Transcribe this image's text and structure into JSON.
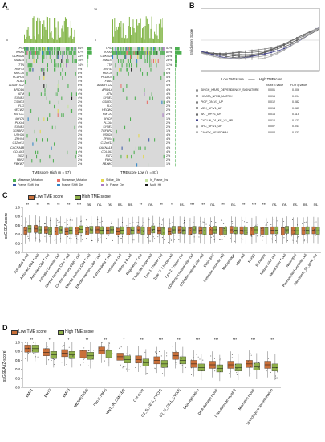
{
  "panels": {
    "A": {
      "letter": "A",
      "left_counts_top": "87",
      "right_counts_top": "71",
      "axis_zero": "0",
      "axis_top_left": "29",
      "axis_top_right": "38",
      "left_caption": "TMEscore High (n = 57)",
      "right_caption": "TMEscore Low (n = 81)",
      "genes_left": [
        "TP53",
        "KRAS",
        "CDKN2A",
        "SMAD4",
        "TTN",
        "RNF43",
        "MUC16",
        "PCDH15",
        "FLAG",
        "ADAMTS12",
        "ARID1A",
        "ATM",
        "SYNE1",
        "CSMD3",
        "FLG",
        "HECW2",
        "KMT2C",
        "MYCN",
        "PLXA4",
        "SYNE1",
        "TGFBR2",
        "USH2A",
        "ZFHX4",
        "C12orf11",
        "CACNA1B",
        "COL4A3",
        "FAT2",
        "FBN2",
        "FBXW7"
      ],
      "pct_left": [
        "64%",
        "67%",
        "23%",
        "15%",
        "14%",
        "9%",
        "8%",
        "8%",
        "4%",
        "6%",
        "4%",
        "4%",
        "4%",
        "2%",
        "4%",
        "4%",
        "4%",
        "2%",
        "4%",
        "4%",
        "4%",
        "2%",
        "4%",
        "2%",
        "2%",
        "4%",
        "2%",
        "2%",
        "2%"
      ],
      "genes_right": [
        "TP53",
        "KRAS",
        "CDKN2A",
        "SMAD4",
        "TTN",
        "RNF43",
        "MUC16",
        "PCDH15",
        "FLAG",
        "ADAMTS12",
        "ARID1A",
        "ATM",
        "SYNE1",
        "CSMD3",
        "FLG",
        "HECW2",
        "KMT2C",
        "MYCN",
        "PLXA4",
        "SYNE1",
        "TGFBR2",
        "USH2A",
        "ZFHX4",
        "C12orf11",
        "CACNA1B",
        "COL4A3",
        "FAT2",
        "FBN2",
        "FBXW7"
      ],
      "pct_right": [
        "57%",
        "84%",
        "28%",
        "26%",
        "17%",
        "7%",
        "6%",
        "5%",
        "2%",
        "4%",
        "4%",
        "4%",
        "4%",
        "4%",
        "2%",
        "2%",
        "2%",
        "1%",
        "2%",
        "2%",
        "1%",
        "4%",
        "4%",
        "2%",
        "4%",
        "4%",
        "2%",
        "2%",
        "1%"
      ],
      "legend": [
        {
          "label": "Missense_Mutation",
          "color": "#4caf50"
        },
        {
          "label": "Nonsense_Mutation",
          "color": "#e86f68"
        },
        {
          "label": "Splice_Site",
          "color": "#e5d74b"
        },
        {
          "label": "In_Frame_Ins",
          "color": "#c4e39d"
        },
        {
          "label": "Frame_Shift_Ins",
          "color": "#3d5aa8"
        },
        {
          "label": "Frame_Shift_Del",
          "color": "#2f86c6"
        },
        {
          "label": "In_Frame_Del",
          "color": "#a877c4"
        },
        {
          "label": "Multi_Hit",
          "color": "#1a1a1a"
        }
      ]
    },
    "B": {
      "letter": "B",
      "ylabel": "Enrichment Score",
      "xlabel": "Low TMEscore ←——→ High TMEscore",
      "col_nom": "NOM p-value",
      "col_fdr": "FDR q-value",
      "rows": [
        {
          "name": "SINGH_KRAS_DEPENDENCY_SIGNATURE",
          "p": "0.001",
          "q": "0.006",
          "color": "#8a8a8a"
        },
        {
          "name": "HINATA_NFKB_MATRIX",
          "p": "0.016",
          "q": "0.094",
          "color": "#6b6b6b"
        },
        {
          "name": "PIGF_DN.V1_UP",
          "p": "0.012",
          "q": "0.082",
          "color": "#7a7a7a"
        },
        {
          "name": "MEK_UP.V1_UP",
          "p": "0.014",
          "q": "0.083",
          "color": "#555555"
        },
        {
          "name": "AKT_UP.V1_UP",
          "p": "0.016",
          "q": "0.115",
          "color": "#666666"
        },
        {
          "name": "CYCLIN_D1_KE_V1_UP",
          "p": "0.010",
          "q": "0.123",
          "color": "#3e3e8a"
        },
        {
          "name": "SRC_UP.V1_UP",
          "p": "0.007",
          "q": "0.041",
          "color": "#9c9c9c"
        },
        {
          "name": "CAHOY_NEURONAL",
          "p": "0.002",
          "q": "0.033",
          "color": "#b0b0b0"
        }
      ]
    },
    "C": {
      "letter": "C",
      "legend_low": "Low TME score",
      "legend_high": "High TME score",
      "ylabel": "ssGSEA score",
      "yticks": [
        "1.0",
        "0.8",
        "0.6",
        "0.4",
        "0.2",
        "0.0"
      ],
      "categories": [
        "Activated B cell",
        "Activated CD4 T cell",
        "Activated CD8 T cell",
        "Activated dendritic cell",
        "Central memory CD4 T cell",
        "Central memory CD8 T cell",
        "Effector memory CD4 T cell",
        "Effector memory CD8 T cell",
        "Gamma delta T cell",
        "Immature B cell",
        "Memory B cell",
        "Regulatory T cell",
        "T follicular helper cell",
        "Type 1 T helper cell",
        "Type 17 T helper cell",
        "Type 2 T helper cell",
        "CD56bright natural killer cell",
        "CD56dim natural killer cell",
        "Eosinophil",
        "Immature dendritic cell",
        "Macrophage",
        "Mast cell",
        "MDSC",
        "Monocyte",
        "Natural killer cell",
        "Natural killer T cell",
        "Neutrophil",
        "Plasmacytoid dendritic cell",
        "Fibroblasts_53_gene_set"
      ],
      "sig": [
        "**",
        "**",
        "**",
        "**",
        "**",
        "***",
        "ns.",
        "ns.",
        "ns.",
        "ns.",
        "ns.",
        "**",
        "ns.",
        "**",
        "*",
        "ns.",
        "***",
        "***",
        "ns.",
        "**",
        "ns.",
        "**",
        "***",
        "***",
        "ns.",
        "ns.",
        "ns.",
        "ns.",
        "ns."
      ]
    },
    "D": {
      "letter": "D",
      "legend_low": "Low TME score",
      "legend_high": "High TME score",
      "ylabel": "ssGSEA (Z-score)",
      "yticks": [
        "1.0",
        "0.8",
        "0.6",
        "0.4",
        "0.2",
        "0.0"
      ],
      "categories": [
        "EMT1",
        "EMT2",
        "EMT3",
        "METASTASIS",
        "Pan-F-TBRS",
        "WNT_IN_CANCER",
        "Cell cycle",
        "G1_S_CELL_CYCLE",
        "G2_M_CELL_CYCLE",
        "DNA replication",
        "DNA damage repair",
        "DNA damage repair 2",
        "Mismatch repair",
        "Homologous recombination"
      ],
      "sig": [
        "**",
        "**",
        "*",
        "**",
        "**",
        "*",
        "***",
        "***",
        "***",
        "***",
        "***",
        "***",
        "***",
        "***"
      ]
    }
  },
  "chart_data": [
    {
      "type": "box",
      "panel": "C",
      "ylabel": "ssGSEA score",
      "ylim": [
        0,
        1.0
      ],
      "categories": [
        "Activated B cell",
        "Activated CD4 T cell",
        "Activated CD8 T cell",
        "Activated dendritic cell",
        "Central memory CD4 T cell",
        "Central memory CD8 T cell",
        "Effector memory CD4 T cell",
        "Effector memory CD8 T cell",
        "Gamma delta T cell",
        "Immature B cell",
        "Memory B cell",
        "Regulatory T cell",
        "T follicular helper cell",
        "Type 1 T helper cell",
        "Type 17 T helper cell",
        "Type 2 T helper cell",
        "CD56bright natural killer cell",
        "CD56dim natural killer cell",
        "Eosinophil",
        "Immature dendritic cell",
        "Macrophage",
        "Mast cell",
        "MDSC",
        "Monocyte",
        "Natural killer cell",
        "Natural killer T cell",
        "Neutrophil",
        "Plasmacytoid dendritic cell",
        "Fibroblasts_53_gene_set"
      ],
      "series": [
        {
          "name": "Low TME score",
          "color": "#c9703a",
          "medians": [
            0.48,
            0.52,
            0.5,
            0.47,
            0.46,
            0.48,
            0.47,
            0.5,
            0.49,
            0.46,
            0.47,
            0.5,
            0.48,
            0.49,
            0.46,
            0.5,
            0.47,
            0.49,
            0.48,
            0.47,
            0.5,
            0.49,
            0.47,
            0.48,
            0.49,
            0.47,
            0.48,
            0.48,
            0.49
          ]
        },
        {
          "name": "High TME score",
          "color": "#8fb04a",
          "medians": [
            0.52,
            0.5,
            0.48,
            0.5,
            0.49,
            0.51,
            0.5,
            0.49,
            0.5,
            0.49,
            0.49,
            0.48,
            0.51,
            0.47,
            0.5,
            0.49,
            0.5,
            0.47,
            0.5,
            0.48,
            0.49,
            0.48,
            0.5,
            0.47,
            0.49,
            0.5,
            0.48,
            0.49,
            0.48
          ]
        }
      ]
    },
    {
      "type": "box",
      "panel": "D",
      "ylabel": "ssGSEA (Z-score)",
      "ylim": [
        0,
        1.0
      ],
      "categories": [
        "EMT1",
        "EMT2",
        "EMT3",
        "METASTASIS",
        "Pan-F-TBRS",
        "WNT_IN_CANCER",
        "Cell cycle",
        "G1_S_CELL_CYCLE",
        "G2_M_CELL_CYCLE",
        "DNA replication",
        "DNA damage repair",
        "DNA damage repair 2",
        "Mismatch repair",
        "Homologous recombination"
      ],
      "series": [
        {
          "name": "Low TME score",
          "color": "#c9703a",
          "medians": [
            0.86,
            0.78,
            0.76,
            0.74,
            0.82,
            0.68,
            0.62,
            0.6,
            0.7,
            0.52,
            0.5,
            0.5,
            0.52,
            0.5
          ]
        },
        {
          "name": "High TME score",
          "color": "#8fb04a",
          "medians": [
            0.86,
            0.72,
            0.72,
            0.7,
            0.74,
            0.62,
            0.55,
            0.52,
            0.6,
            0.44,
            0.42,
            0.44,
            0.46,
            0.44
          ]
        }
      ]
    }
  ]
}
